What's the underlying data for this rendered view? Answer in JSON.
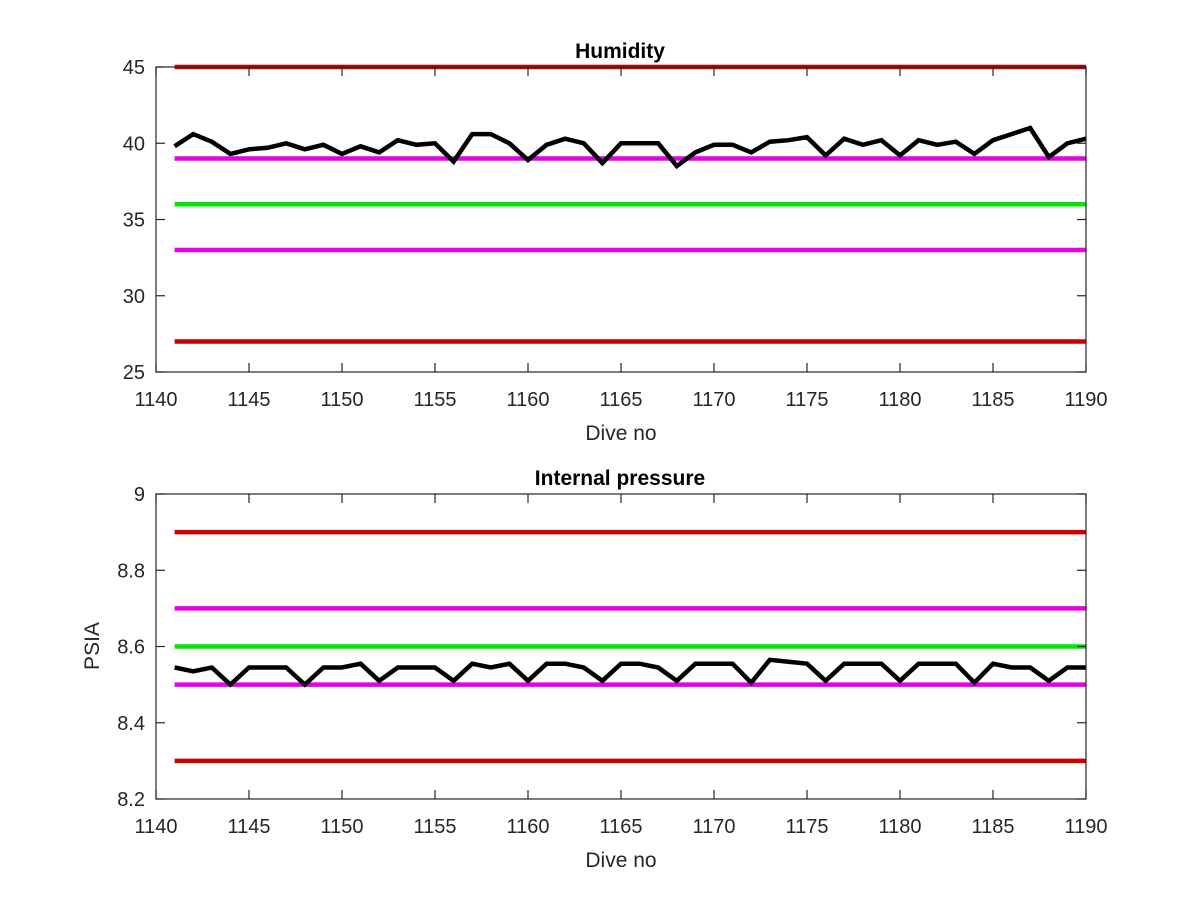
{
  "chart_data": [
    {
      "type": "line",
      "title": "Humidity",
      "xlabel": "Dive no",
      "ylabel": "",
      "xlim": [
        1140,
        1190
      ],
      "ylim": [
        25,
        45
      ],
      "xticks": [
        1140,
        1145,
        1150,
        1155,
        1160,
        1165,
        1170,
        1175,
        1180,
        1185,
        1190
      ],
      "yticks": [
        25,
        30,
        35,
        40,
        45
      ],
      "grid": false,
      "threshold_lines": [
        {
          "y": 45,
          "color": "#cc0000"
        },
        {
          "y": 39,
          "color": "#e600e6"
        },
        {
          "y": 36,
          "color": "#00e600"
        },
        {
          "y": 33,
          "color": "#e600e6"
        },
        {
          "y": 27,
          "color": "#cc0000"
        }
      ],
      "series": [
        {
          "color": "#000000",
          "x": [
            1141,
            1142,
            1143,
            1144,
            1145,
            1146,
            1147,
            1148,
            1149,
            1150,
            1151,
            1152,
            1153,
            1154,
            1155,
            1156,
            1157,
            1158,
            1159,
            1160,
            1161,
            1162,
            1163,
            1164,
            1165,
            1166,
            1167,
            1168,
            1169,
            1170,
            1171,
            1172,
            1173,
            1174,
            1175,
            1176,
            1177,
            1178,
            1179,
            1180,
            1181,
            1182,
            1183,
            1184,
            1185,
            1186,
            1187,
            1188,
            1189,
            1190
          ],
          "values": [
            39.8,
            40.6,
            40.1,
            39.3,
            39.6,
            39.7,
            40.0,
            39.6,
            39.9,
            39.3,
            39.8,
            39.4,
            40.2,
            39.9,
            40.0,
            38.8,
            40.6,
            40.6,
            40.0,
            38.9,
            39.9,
            40.3,
            40.0,
            38.7,
            40.0,
            40.0,
            40.0,
            38.5,
            39.4,
            39.9,
            39.9,
            39.4,
            40.1,
            40.2,
            40.4,
            39.2,
            40.3,
            39.9,
            40.2,
            39.2,
            40.2,
            39.9,
            40.1,
            39.3,
            40.2,
            40.6,
            41.0,
            39.1,
            40.0,
            40.3
          ]
        }
      ]
    },
    {
      "type": "line",
      "title": "Internal pressure",
      "xlabel": "Dive no",
      "ylabel": "PSIA",
      "xlim": [
        1140,
        1190
      ],
      "ylim": [
        8.2,
        9.0
      ],
      "xticks": [
        1140,
        1145,
        1150,
        1155,
        1160,
        1165,
        1170,
        1175,
        1180,
        1185,
        1190
      ],
      "yticks": [
        8.2,
        8.4,
        8.6,
        8.8,
        9
      ],
      "ytick_labels": [
        "8.2",
        "8.4",
        "8.6",
        "8.8",
        "9"
      ],
      "grid": false,
      "threshold_lines": [
        {
          "y": 8.9,
          "color": "#cc0000"
        },
        {
          "y": 8.7,
          "color": "#e600e6"
        },
        {
          "y": 8.6,
          "color": "#00e600"
        },
        {
          "y": 8.5,
          "color": "#e600e6"
        },
        {
          "y": 8.3,
          "color": "#cc0000"
        }
      ],
      "series": [
        {
          "color": "#000000",
          "x": [
            1141,
            1142,
            1143,
            1144,
            1145,
            1146,
            1147,
            1148,
            1149,
            1150,
            1151,
            1152,
            1153,
            1154,
            1155,
            1156,
            1157,
            1158,
            1159,
            1160,
            1161,
            1162,
            1163,
            1164,
            1165,
            1166,
            1167,
            1168,
            1169,
            1170,
            1171,
            1172,
            1173,
            1174,
            1175,
            1176,
            1177,
            1178,
            1179,
            1180,
            1181,
            1182,
            1183,
            1184,
            1185,
            1186,
            1187,
            1188,
            1189,
            1190
          ],
          "values": [
            8.545,
            8.535,
            8.545,
            8.5,
            8.545,
            8.545,
            8.545,
            8.5,
            8.545,
            8.545,
            8.555,
            8.51,
            8.545,
            8.545,
            8.545,
            8.51,
            8.555,
            8.545,
            8.555,
            8.51,
            8.555,
            8.555,
            8.545,
            8.51,
            8.555,
            8.555,
            8.545,
            8.51,
            8.555,
            8.555,
            8.555,
            8.505,
            8.565,
            8.56,
            8.555,
            8.51,
            8.555,
            8.555,
            8.555,
            8.51,
            8.555,
            8.555,
            8.555,
            8.505,
            8.555,
            8.545,
            8.545,
            8.51,
            8.545,
            8.545
          ]
        }
      ]
    }
  ]
}
